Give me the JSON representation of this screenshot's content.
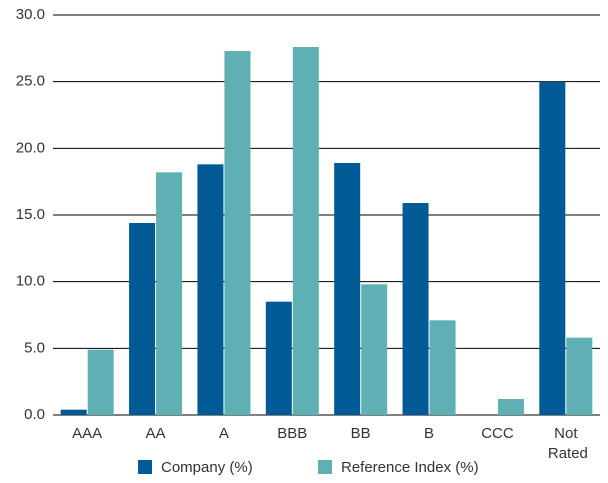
{
  "chart_data": {
    "type": "bar",
    "categories": [
      "AAA",
      "AA",
      "A",
      "BBB",
      "BB",
      "B",
      "CCC",
      "Not Rated"
    ],
    "series": [
      {
        "name": "Company (%)",
        "color": "#005a96",
        "values": [
          0.4,
          14.4,
          18.8,
          8.5,
          18.9,
          15.9,
          0,
          25.0
        ]
      },
      {
        "name": "Reference Index (%)",
        "color": "#5fb0b4",
        "values": [
          4.9,
          18.2,
          27.3,
          27.6,
          9.8,
          7.1,
          1.2,
          5.8
        ]
      }
    ],
    "ylim": [
      0,
      30
    ],
    "yticks": [
      {
        "value": 0,
        "label": "0.0"
      },
      {
        "value": 5,
        "label": "5.0"
      },
      {
        "value": 10,
        "label": "10.0"
      },
      {
        "value": 15,
        "label": "15.0"
      },
      {
        "value": 20,
        "label": "20.0"
      },
      {
        "value": 25,
        "label": "25.0"
      },
      {
        "value": 30,
        "label": "30.0"
      }
    ],
    "grid": true,
    "legend": "bottom"
  }
}
